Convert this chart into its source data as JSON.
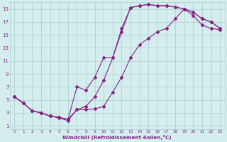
{
  "xlabel": "Windchill (Refroidissement éolien,°C)",
  "bg_color": "#d4eeee",
  "grid_color": "#aacccc",
  "line_color": "#882288",
  "xlim": [
    -0.5,
    23.5
  ],
  "ylim": [
    0.5,
    20.0
  ],
  "xticks": [
    0,
    1,
    2,
    3,
    4,
    5,
    6,
    7,
    8,
    9,
    10,
    11,
    12,
    13,
    14,
    15,
    16,
    17,
    18,
    19,
    20,
    21,
    22,
    23
  ],
  "yticks": [
    1,
    3,
    5,
    7,
    9,
    11,
    13,
    15,
    17,
    19
  ],
  "line1_x": [
    0,
    1,
    2,
    3,
    4,
    5,
    6,
    7,
    8,
    9,
    10,
    11,
    12,
    13,
    14,
    15,
    16,
    17,
    18,
    19,
    20,
    21,
    22,
    23
  ],
  "line1_y": [
    5.5,
    4.5,
    3.3,
    3.0,
    2.5,
    2.2,
    1.8,
    3.5,
    3.5,
    3.6,
    4.0,
    6.2,
    8.5,
    11.5,
    13.5,
    14.5,
    15.5,
    16.0,
    17.5,
    19.0,
    18.0,
    16.5,
    16.0,
    15.8
  ],
  "line2_x": [
    0,
    1,
    2,
    3,
    4,
    5,
    6,
    7,
    8,
    9,
    10,
    11,
    12,
    13,
    14,
    15,
    16,
    17,
    18,
    19,
    20,
    21,
    22,
    23
  ],
  "line2_y": [
    5.5,
    4.5,
    3.3,
    3.0,
    2.5,
    2.3,
    2.0,
    3.5,
    4.0,
    5.5,
    8.0,
    11.5,
    15.5,
    19.2,
    19.5,
    19.7,
    19.5,
    19.5,
    19.3,
    19.0,
    18.5,
    17.5,
    17.0,
    16.0
  ],
  "line3_x": [
    0,
    1,
    2,
    3,
    4,
    5,
    6,
    7,
    8,
    9,
    10,
    11,
    12,
    13,
    14,
    15,
    16,
    17,
    18,
    19,
    20,
    21,
    22,
    23
  ],
  "line3_y": [
    5.5,
    4.5,
    3.3,
    3.0,
    2.5,
    2.3,
    2.0,
    7.0,
    6.5,
    8.5,
    11.5,
    11.5,
    16.0,
    19.2,
    19.5,
    19.7,
    19.5,
    19.5,
    19.3,
    19.0,
    18.5,
    17.5,
    17.0,
    16.0
  ]
}
